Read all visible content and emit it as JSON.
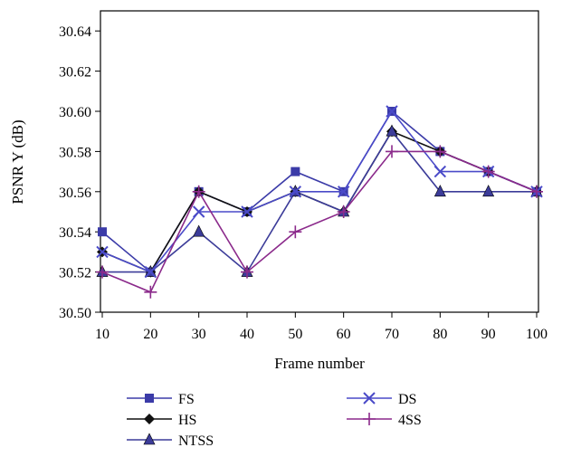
{
  "chart_data": {
    "type": "line",
    "xlabel": "Frame number",
    "ylabel": "PSNR Y (dB)",
    "x": [
      10,
      20,
      30,
      40,
      50,
      60,
      70,
      80,
      90,
      100
    ],
    "ylim": [
      30.5,
      30.65
    ],
    "yticks": [
      "30.50",
      "30.52",
      "30.54",
      "30.56",
      "30.58",
      "30.60",
      "30.62",
      "30.64"
    ],
    "xticks": [
      "10",
      "20",
      "30",
      "40",
      "50",
      "60",
      "70",
      "80",
      "90",
      "100"
    ],
    "grid": false,
    "legend_position": "bottom",
    "series": [
      {
        "name": "FS",
        "color": "#3b3ba8",
        "marker": "square",
        "values": [
          30.54,
          30.52,
          30.56,
          30.55,
          30.57,
          30.56,
          30.6,
          30.58,
          30.57,
          30.56
        ]
      },
      {
        "name": "HS",
        "color": "#111111",
        "marker": "diamond",
        "values": [
          30.53,
          30.52,
          30.56,
          30.55,
          30.56,
          30.55,
          30.59,
          30.58,
          30.57,
          30.56
        ]
      },
      {
        "name": "NTSS",
        "color": "#3c3c99",
        "marker": "triangle",
        "values": [
          30.52,
          30.52,
          30.54,
          30.52,
          30.56,
          30.55,
          30.59,
          30.56,
          30.56,
          30.56
        ]
      },
      {
        "name": "DS",
        "color": "#4a4ac8",
        "marker": "x",
        "values": [
          30.53,
          30.52,
          30.55,
          30.55,
          30.56,
          30.56,
          30.6,
          30.57,
          30.57,
          30.56
        ]
      },
      {
        "name": "4SS",
        "color": "#8b2a8b",
        "marker": "plus",
        "values": [
          30.52,
          30.51,
          30.56,
          30.52,
          30.54,
          30.55,
          30.58,
          30.58,
          30.57,
          30.56
        ]
      }
    ]
  }
}
